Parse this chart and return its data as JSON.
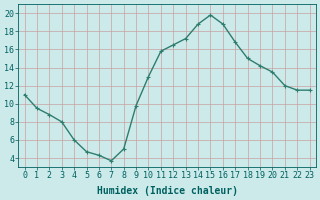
{
  "x": [
    0,
    1,
    2,
    3,
    4,
    5,
    6,
    7,
    8,
    9,
    10,
    11,
    12,
    13,
    14,
    15,
    16,
    17,
    18,
    19,
    20,
    21,
    22,
    23
  ],
  "y": [
    11,
    9.5,
    8.8,
    8,
    6,
    4.7,
    4.3,
    3.7,
    5,
    9.8,
    13,
    15.8,
    16.5,
    17.2,
    18.8,
    19.8,
    18.8,
    16.8,
    15,
    14.2,
    13.5,
    12,
    11.5,
    11.5
  ],
  "line_color": "#2e7d6e",
  "marker": "+",
  "marker_size": 3,
  "bg_color": "#cceaea",
  "grid_color": "#c8a0a0",
  "xlabel": "Humidex (Indice chaleur)",
  "ylabel_left_ticks": [
    4,
    6,
    8,
    10,
    12,
    14,
    16,
    18,
    20
  ],
  "xlim": [
    -0.5,
    23.5
  ],
  "ylim": [
    3,
    21
  ],
  "xlabel_fontsize": 7,
  "tick_fontsize": 6,
  "line_width": 1.0,
  "xlabel_color": "#006060"
}
